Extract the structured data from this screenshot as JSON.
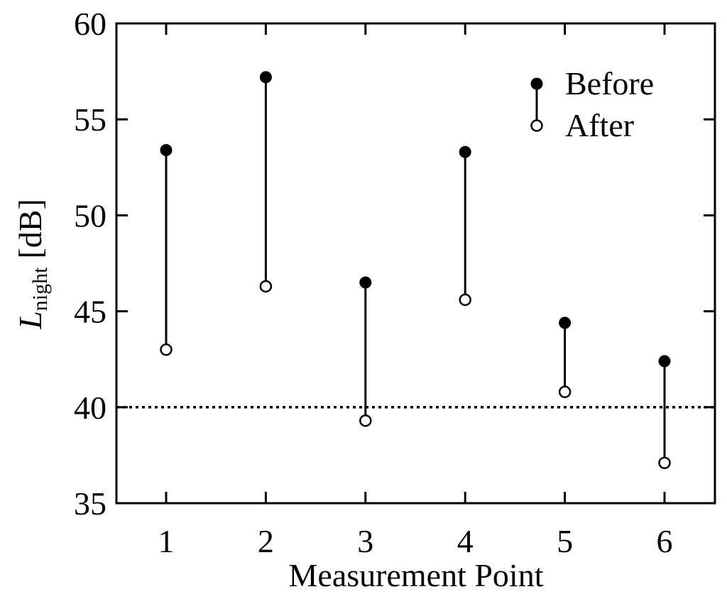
{
  "chart_data": {
    "type": "dumbbell",
    "title": "",
    "xlabel": "Measurement Point",
    "ylabel": {
      "main": "L",
      "subscript": "night",
      "unit": "[dB]"
    },
    "categories": [
      "1",
      "2",
      "3",
      "4",
      "5",
      "6"
    ],
    "ylim": [
      35,
      60
    ],
    "yticks": [
      "35",
      "40",
      "45",
      "50",
      "55",
      "60"
    ],
    "grid": false,
    "legend_position": "top-right",
    "series": [
      {
        "name": "Before",
        "marker": "filled-circle",
        "values": [
          53.4,
          57.2,
          46.5,
          53.3,
          44.4,
          42.4
        ]
      },
      {
        "name": "After",
        "marker": "open-circle",
        "values": [
          43.0,
          46.3,
          39.3,
          45.6,
          40.8,
          37.1
        ]
      }
    ],
    "reference_line": {
      "y": 40,
      "style": "dotted"
    }
  }
}
